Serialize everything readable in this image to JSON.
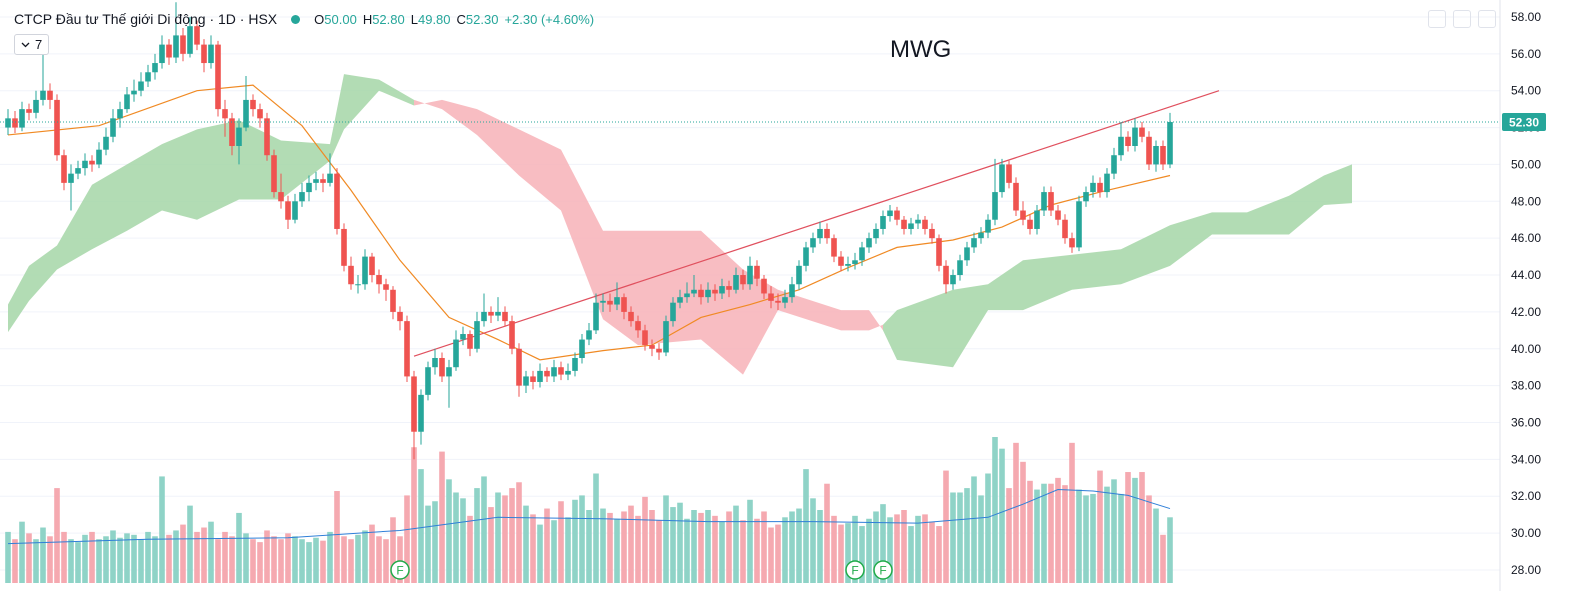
{
  "chart_data": {
    "type": "candlestick",
    "title": "MWG",
    "symbol": "CTCP Đầu tư Thế giới Di động · 1D · HSX",
    "legend": [
      {
        "key": "O",
        "value": "50.00"
      },
      {
        "key": "H",
        "value": "52.80"
      },
      {
        "key": "L",
        "value": "49.80"
      },
      {
        "key": "C",
        "value": "52.30"
      }
    ],
    "change": "+2.30 (+4.60%)",
    "interval_badge": "7",
    "ylim": [
      26.86,
      58.92
    ],
    "yticks": [
      {
        "value": 28,
        "label": "28.00"
      },
      {
        "value": 30,
        "label": "30.00"
      },
      {
        "value": 32,
        "label": "32.00"
      },
      {
        "value": 34,
        "label": "34.00"
      },
      {
        "value": 36,
        "label": "36.00"
      },
      {
        "value": 38,
        "label": "38.00"
      },
      {
        "value": 40,
        "label": "40.00"
      },
      {
        "value": 42,
        "label": "42.00"
      },
      {
        "value": 44,
        "label": "44.00"
      },
      {
        "value": 46,
        "label": "46.00"
      },
      {
        "value": 48,
        "label": "48.00"
      },
      {
        "value": 50,
        "label": "50.00"
      },
      {
        "value": 52,
        "label": "52.00"
      },
      {
        "value": 54,
        "label": "54.00"
      },
      {
        "value": 56,
        "label": "56.00"
      },
      {
        "value": 58,
        "label": "58.00"
      }
    ],
    "grid": true,
    "up_color": "#26a69a",
    "down_color": "#ef5350",
    "candles": [
      [
        52.0,
        53.0,
        51.6,
        52.5
      ],
      [
        52.5,
        52.9,
        51.7,
        52.0
      ],
      [
        52.0,
        53.4,
        51.8,
        53.0
      ],
      [
        53.0,
        53.3,
        52.4,
        52.8
      ],
      [
        52.8,
        54.0,
        52.5,
        53.5
      ],
      [
        53.5,
        56.0,
        53.2,
        54.0
      ],
      [
        54.0,
        54.4,
        53.0,
        53.5
      ],
      [
        53.5,
        53.8,
        50.2,
        50.5
      ],
      [
        50.5,
        50.8,
        48.6,
        49.0
      ],
      [
        49.0,
        50.0,
        47.5,
        49.5
      ],
      [
        49.5,
        50.2,
        49.2,
        49.8
      ],
      [
        49.8,
        50.6,
        49.4,
        50.2
      ],
      [
        50.2,
        50.5,
        49.6,
        50.0
      ],
      [
        50.0,
        51.2,
        49.8,
        50.8
      ],
      [
        50.8,
        52.0,
        50.5,
        51.5
      ],
      [
        51.5,
        53.0,
        51.2,
        52.5
      ],
      [
        52.5,
        53.4,
        52.0,
        53.0
      ],
      [
        53.0,
        54.2,
        52.8,
        53.8
      ],
      [
        53.8,
        54.6,
        53.4,
        54.0
      ],
      [
        54.0,
        55.0,
        53.7,
        54.5
      ],
      [
        54.5,
        55.4,
        54.2,
        55.0
      ],
      [
        55.0,
        56.0,
        54.6,
        55.5
      ],
      [
        55.5,
        57.0,
        55.2,
        56.5
      ],
      [
        56.5,
        56.8,
        55.4,
        55.8
      ],
      [
        55.8,
        58.8,
        55.5,
        57.0
      ],
      [
        57.0,
        57.4,
        55.6,
        56.0
      ],
      [
        56.0,
        58.0,
        55.8,
        57.5
      ],
      [
        57.5,
        57.8,
        56.2,
        56.5
      ],
      [
        56.5,
        56.8,
        55.0,
        55.5
      ],
      [
        55.5,
        57.0,
        55.2,
        56.5
      ],
      [
        56.5,
        56.7,
        52.6,
        53.0
      ],
      [
        53.0,
        53.5,
        51.5,
        52.5
      ],
      [
        52.5,
        52.8,
        50.5,
        51.0
      ],
      [
        51.0,
        52.5,
        50.0,
        52.0
      ],
      [
        52.0,
        54.8,
        51.8,
        53.5
      ],
      [
        53.5,
        53.8,
        52.6,
        53.0
      ],
      [
        53.0,
        53.3,
        52.0,
        52.5
      ],
      [
        52.5,
        52.8,
        50.2,
        50.5
      ],
      [
        50.5,
        50.8,
        48.2,
        48.5
      ],
      [
        48.5,
        49.5,
        47.6,
        48.0
      ],
      [
        48.0,
        48.3,
        46.5,
        47.0
      ],
      [
        47.0,
        48.4,
        46.8,
        48.0
      ],
      [
        48.0,
        49.0,
        47.7,
        48.5
      ],
      [
        48.5,
        49.4,
        48.0,
        49.0
      ],
      [
        49.0,
        49.6,
        48.6,
        49.2
      ],
      [
        49.2,
        49.5,
        48.5,
        49.0
      ],
      [
        49.0,
        50.6,
        48.8,
        49.5
      ],
      [
        49.5,
        49.8,
        46.2,
        46.5
      ],
      [
        46.5,
        46.8,
        44.2,
        44.5
      ],
      [
        44.5,
        45.0,
        43.2,
        43.5
      ],
      [
        43.5,
        44.0,
        43.0,
        43.5
      ],
      [
        43.5,
        45.4,
        43.2,
        45.0
      ],
      [
        45.0,
        45.2,
        43.6,
        44.0
      ],
      [
        44.0,
        44.3,
        43.0,
        43.5
      ],
      [
        43.5,
        43.8,
        42.6,
        43.2
      ],
      [
        43.2,
        43.4,
        41.6,
        42.0
      ],
      [
        42.0,
        42.3,
        41.0,
        41.5
      ],
      [
        41.5,
        41.8,
        38.2,
        38.5
      ],
      [
        38.5,
        38.8,
        34.0,
        35.5
      ],
      [
        35.5,
        37.8,
        34.8,
        37.5
      ],
      [
        37.5,
        39.3,
        37.2,
        39.0
      ],
      [
        39.0,
        40.0,
        38.6,
        39.5
      ],
      [
        39.5,
        39.8,
        38.2,
        38.5
      ],
      [
        38.5,
        39.4,
        36.8,
        39.0
      ],
      [
        39.0,
        41.0,
        38.8,
        40.5
      ],
      [
        40.5,
        41.2,
        40.2,
        40.8
      ],
      [
        40.8,
        41.0,
        39.6,
        40.0
      ],
      [
        40.0,
        42.0,
        39.8,
        41.5
      ],
      [
        41.5,
        43.0,
        41.2,
        42.0
      ],
      [
        42.0,
        42.3,
        41.4,
        41.8
      ],
      [
        41.8,
        42.8,
        41.5,
        42.0
      ],
      [
        42.0,
        42.3,
        41.2,
        41.5
      ],
      [
        41.5,
        41.8,
        39.7,
        40.0
      ],
      [
        40.0,
        40.3,
        37.4,
        38.0
      ],
      [
        38.0,
        38.8,
        37.6,
        38.5
      ],
      [
        38.5,
        38.8,
        37.8,
        38.2
      ],
      [
        38.2,
        39.2,
        37.9,
        38.8
      ],
      [
        38.8,
        39.0,
        38.2,
        38.5
      ],
      [
        38.5,
        39.4,
        38.2,
        39.0
      ],
      [
        39.0,
        39.3,
        38.3,
        38.6
      ],
      [
        38.6,
        39.2,
        38.3,
        38.8
      ],
      [
        38.8,
        39.8,
        38.5,
        39.5
      ],
      [
        39.5,
        40.8,
        39.2,
        40.5
      ],
      [
        40.5,
        41.4,
        40.2,
        41.0
      ],
      [
        41.0,
        43.0,
        40.8,
        42.5
      ],
      [
        42.5,
        43.0,
        42.0,
        42.6
      ],
      [
        42.6,
        43.0,
        42.0,
        42.4
      ],
      [
        42.4,
        43.6,
        42.1,
        42.8
      ],
      [
        42.8,
        43.0,
        41.6,
        42.0
      ],
      [
        42.0,
        42.3,
        41.2,
        41.5
      ],
      [
        41.5,
        41.8,
        40.6,
        41.0
      ],
      [
        41.0,
        41.3,
        39.9,
        40.2
      ],
      [
        40.2,
        40.5,
        39.6,
        40.0
      ],
      [
        40.0,
        40.3,
        39.4,
        39.8
      ],
      [
        39.8,
        41.8,
        39.6,
        41.5
      ],
      [
        41.5,
        42.8,
        41.2,
        42.5
      ],
      [
        42.5,
        43.2,
        42.2,
        42.8
      ],
      [
        42.8,
        43.6,
        42.5,
        43.0
      ],
      [
        43.0,
        44.0,
        42.8,
        43.2
      ],
      [
        43.2,
        43.5,
        42.4,
        42.8
      ],
      [
        42.8,
        43.6,
        42.5,
        43.2
      ],
      [
        43.2,
        43.5,
        42.6,
        43.0
      ],
      [
        43.0,
        43.8,
        42.7,
        43.4
      ],
      [
        43.4,
        43.7,
        42.8,
        43.2
      ],
      [
        43.2,
        44.4,
        43.0,
        44.0
      ],
      [
        44.0,
        44.3,
        43.2,
        43.5
      ],
      [
        43.5,
        45.0,
        43.2,
        44.5
      ],
      [
        44.5,
        44.8,
        43.4,
        43.8
      ],
      [
        43.8,
        44.0,
        42.7,
        43.0
      ],
      [
        43.0,
        43.4,
        42.2,
        42.6
      ],
      [
        42.6,
        43.0,
        42.1,
        42.5
      ],
      [
        42.5,
        43.2,
        42.2,
        42.8
      ],
      [
        42.8,
        43.9,
        42.5,
        43.5
      ],
      [
        43.5,
        44.8,
        43.2,
        44.5
      ],
      [
        44.5,
        45.8,
        44.2,
        45.5
      ],
      [
        45.5,
        46.3,
        45.2,
        46.0
      ],
      [
        46.0,
        46.9,
        45.7,
        46.5
      ],
      [
        46.5,
        46.8,
        45.7,
        46.0
      ],
      [
        46.0,
        46.2,
        44.7,
        45.0
      ],
      [
        45.0,
        45.3,
        44.2,
        44.5
      ],
      [
        44.5,
        45.0,
        44.2,
        44.6
      ],
      [
        44.6,
        45.2,
        44.3,
        44.8
      ],
      [
        44.8,
        45.8,
        44.5,
        45.5
      ],
      [
        45.5,
        46.3,
        45.2,
        46.0
      ],
      [
        46.0,
        46.8,
        45.7,
        46.5
      ],
      [
        46.5,
        47.5,
        46.2,
        47.2
      ],
      [
        47.2,
        47.8,
        46.9,
        47.5
      ],
      [
        47.5,
        47.7,
        46.7,
        47.0
      ],
      [
        47.0,
        47.2,
        46.2,
        46.5
      ],
      [
        46.5,
        47.1,
        46.2,
        46.8
      ],
      [
        46.8,
        47.3,
        46.5,
        47.0
      ],
      [
        47.0,
        47.2,
        46.2,
        46.5
      ],
      [
        46.5,
        46.8,
        45.7,
        46.0
      ],
      [
        46.0,
        46.2,
        44.2,
        44.5
      ],
      [
        44.5,
        44.8,
        43.0,
        43.5
      ],
      [
        43.5,
        44.3,
        43.2,
        44.0
      ],
      [
        44.0,
        45.1,
        43.7,
        44.8
      ],
      [
        44.8,
        45.8,
        44.5,
        45.5
      ],
      [
        45.5,
        46.3,
        45.2,
        46.0
      ],
      [
        46.0,
        46.6,
        45.7,
        46.3
      ],
      [
        46.3,
        47.3,
        46.0,
        47.0
      ],
      [
        47.0,
        50.3,
        46.7,
        48.5
      ],
      [
        48.5,
        50.3,
        48.2,
        50.0
      ],
      [
        50.0,
        50.2,
        48.7,
        49.0
      ],
      [
        49.0,
        49.3,
        47.2,
        47.5
      ],
      [
        47.5,
        48.0,
        46.7,
        47.0
      ],
      [
        47.0,
        47.3,
        46.2,
        46.5
      ],
      [
        46.5,
        47.8,
        46.2,
        47.5
      ],
      [
        47.5,
        48.8,
        47.2,
        48.5
      ],
      [
        48.5,
        48.8,
        47.2,
        47.5
      ],
      [
        47.5,
        47.8,
        46.7,
        47.0
      ],
      [
        47.0,
        47.3,
        45.7,
        46.0
      ],
      [
        46.0,
        46.3,
        45.2,
        45.5
      ],
      [
        45.5,
        48.3,
        45.3,
        48.0
      ],
      [
        48.0,
        48.8,
        47.7,
        48.5
      ],
      [
        48.5,
        49.4,
        48.2,
        49.0
      ],
      [
        49.0,
        49.3,
        48.2,
        48.5
      ],
      [
        48.5,
        49.8,
        48.2,
        49.5
      ],
      [
        49.5,
        50.9,
        49.2,
        50.5
      ],
      [
        50.5,
        52.3,
        50.2,
        51.5
      ],
      [
        51.5,
        51.8,
        50.7,
        51.0
      ],
      [
        51.0,
        52.5,
        50.7,
        52.0
      ],
      [
        52.0,
        52.3,
        51.2,
        51.5
      ],
      [
        51.5,
        51.8,
        49.7,
        50.0
      ],
      [
        50.0,
        51.3,
        49.6,
        51.0
      ],
      [
        51.0,
        51.3,
        49.7,
        50.0
      ],
      [
        50.0,
        52.8,
        49.8,
        52.3
      ]
    ],
    "volume": {
      "up_color": "#8fd3c7",
      "down_color": "#f5a9b0",
      "values": [
        3.5,
        3.0,
        4.2,
        3.4,
        3.0,
        3.8,
        3.2,
        6.5,
        3.5,
        3.0,
        2.8,
        3.3,
        3.5,
        3.0,
        3.2,
        3.6,
        3.1,
        3.4,
        3.3,
        3.0,
        3.5,
        3.2,
        7.3,
        3.3,
        3.6,
        4.0,
        5.3,
        3.5,
        3.8,
        4.2,
        3.0,
        3.5,
        3.2,
        4.8,
        3.4,
        3.0,
        2.8,
        3.6,
        3.2,
        3.0,
        3.4,
        3.2,
        3.0,
        2.8,
        3.1,
        2.9,
        3.5,
        6.3,
        3.2,
        3.0,
        3.3,
        3.6,
        4.0,
        3.2,
        3.0,
        4.5,
        3.2,
        6.0,
        9.3,
        7.8,
        5.3,
        5.6,
        9.0,
        7.1,
        6.2,
        5.8,
        4.6,
        6.5,
        7.3,
        5.2,
        6.2,
        6.0,
        6.5,
        6.9,
        5.3,
        4.7,
        4.0,
        5.1,
        4.3,
        5.6,
        4.5,
        5.7,
        6.0,
        5.0,
        7.5,
        5.1,
        4.8,
        4.4,
        4.9,
        5.3,
        4.6,
        5.9,
        5.0,
        4.3,
        6.0,
        5.2,
        5.5,
        4.4,
        5.0,
        4.8,
        5.0,
        4.6,
        4.2,
        4.9,
        5.3,
        4.3,
        5.7,
        4.4,
        4.9,
        3.8,
        4.0,
        4.5,
        4.9,
        5.1,
        7.8,
        5.8,
        5.0,
        6.8,
        4.6,
        4.0,
        4.1,
        4.6,
        3.9,
        4.4,
        4.9,
        5.4,
        4.5,
        4.7,
        5.0,
        3.9,
        4.6,
        4.7,
        4.2,
        3.9,
        7.7,
        6.2,
        6.2,
        6.5,
        7.3,
        6.0,
        7.5,
        10.0,
        9.2,
        6.5,
        9.6,
        8.3,
        7.0,
        6.4,
        6.8,
        6.8,
        7.2,
        6.7,
        9.6,
        6.4,
        6.0,
        6.1,
        7.7,
        6.6,
        7.1,
        6.1,
        7.6,
        7.2,
        7.6,
        6.0,
        5.1,
        3.3,
        4.5
      ]
    },
    "volume_ma": {
      "color": "#2f7fd8",
      "x": [
        0,
        20,
        40,
        56,
        70,
        85,
        100,
        115,
        130,
        140,
        145,
        150,
        155,
        160,
        166
      ],
      "values": [
        2.7,
        3.0,
        3.1,
        3.6,
        4.5,
        4.4,
        4.2,
        4.2,
        4.1,
        4.5,
        5.4,
        6.4,
        6.3,
        6.0,
        5.1
      ]
    },
    "ma": {
      "color": "#f08a24",
      "x": [
        0,
        13,
        27,
        35,
        42,
        49,
        56,
        63,
        70,
        76,
        85,
        92,
        99,
        106,
        113,
        120,
        127,
        135,
        142,
        149,
        156,
        166
      ],
      "values": [
        51.6,
        52.1,
        54.0,
        54.3,
        52.1,
        48.6,
        44.8,
        41.7,
        40.5,
        39.4,
        39.9,
        40.2,
        41.7,
        42.4,
        43.2,
        44.4,
        45.5,
        45.9,
        46.6,
        47.8,
        48.5,
        49.4
      ]
    },
    "ichimoku": {
      "up_color": "#a5d6a7",
      "down_color": "#f7b2b7",
      "x": [
        0,
        3,
        7,
        12,
        17,
        22,
        27,
        33,
        39,
        46,
        48,
        53,
        58,
        62,
        67,
        73,
        79,
        85,
        90,
        99,
        105,
        110,
        119,
        123,
        125,
        127,
        135,
        140,
        145,
        152,
        159,
        166,
        172,
        177,
        183,
        188,
        192
      ],
      "span_a": [
        42.4,
        44.5,
        45.6,
        48.9,
        50.0,
        51.1,
        51.9,
        52.4,
        51.3,
        51.1,
        54.9,
        54.6,
        53.5,
        53.0,
        51.6,
        49.4,
        47.5,
        41.6,
        40.2,
        40.5,
        38.6,
        42.1,
        41.0,
        41.0,
        41.3,
        42.1,
        43.2,
        43.5,
        44.8,
        45.1,
        45.4,
        46.7,
        47.4,
        47.4,
        48.3,
        49.4,
        50.0
      ],
      "span_b": [
        40.9,
        42.6,
        44.3,
        45.4,
        46.4,
        47.5,
        47.0,
        48.1,
        48.1,
        50.2,
        51.9,
        54.0,
        53.2,
        53.5,
        53.0,
        51.9,
        50.8,
        46.4,
        46.4,
        46.4,
        44.3,
        43.2,
        42.1,
        42.1,
        41.0,
        39.4,
        39.0,
        42.1,
        42.1,
        43.2,
        43.5,
        44.5,
        46.2,
        46.2,
        46.2,
        47.8,
        47.9
      ]
    },
    "trendline": {
      "color": "#e0505e",
      "x": [
        58,
        173
      ],
      "values": [
        39.6,
        54.0
      ]
    },
    "last_price": {
      "value": 52.3,
      "label": "52.30",
      "color": "#26a69a"
    },
    "markers": [
      {
        "x": 56,
        "label": "F"
      },
      {
        "x": 121,
        "label": "F"
      },
      {
        "x": 125,
        "label": "F"
      }
    ]
  }
}
